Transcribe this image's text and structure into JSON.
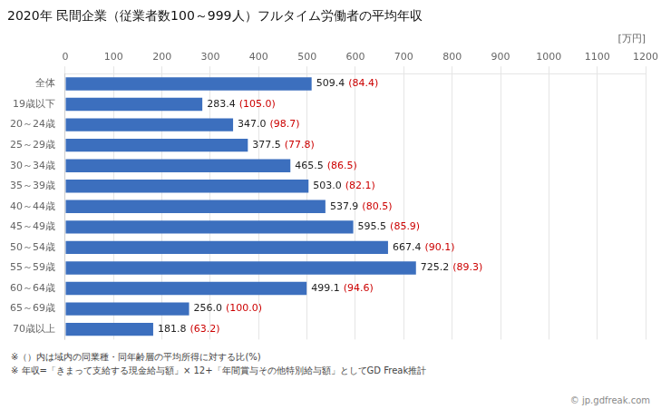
{
  "chart_data": {
    "type": "bar",
    "orientation": "horizontal",
    "title": "2020年 民間企業（従業者数100～999人）フルタイム労働者の平均年収",
    "xlabel": "[万円]",
    "categories": [
      "全体",
      "19歳以下",
      "20～24歳",
      "25～29歳",
      "30～34歳",
      "35～39歳",
      "40～44歳",
      "45～49歳",
      "50～54歳",
      "55～59歳",
      "60～64歳",
      "65～69歳",
      "70歳以上"
    ],
    "values": [
      509.4,
      283.4,
      347.0,
      377.5,
      465.5,
      503.0,
      537.9,
      595.5,
      667.4,
      725.2,
      499.1,
      256.0,
      181.8
    ],
    "value_labels": [
      "509.4",
      "283.4",
      "347.0",
      "377.5",
      "465.5",
      "503.0",
      "537.9",
      "595.5",
      "667.4",
      "725.2",
      "499.1",
      "256.0",
      "181.8"
    ],
    "data_labels": true,
    "ratios": [
      84.4,
      105.0,
      98.7,
      77.8,
      86.5,
      82.1,
      80.5,
      85.9,
      90.1,
      89.3,
      94.6,
      100.0,
      63.2
    ],
    "ratio_labels": [
      "(84.4)",
      "(105.0)",
      "(98.7)",
      "(77.8)",
      "(86.5)",
      "(82.1)",
      "(80.5)",
      "(85.9)",
      "(90.1)",
      "(89.3)",
      "(94.6)",
      "(100.0)",
      "(63.2)"
    ],
    "ratio_color": "#cc0000",
    "color": "#3c6fbe",
    "xlim": [
      0,
      1200
    ],
    "xticks": [
      0,
      100,
      200,
      300,
      400,
      500,
      600,
      700,
      800,
      900,
      1000,
      1100,
      1200
    ],
    "grid": true,
    "notes": [
      "※（）内は域内の同業種・同年齢層の平均所得に対する比(%)",
      "※ 年収=「きまって支給する現金給与額」× 12+「年間賞与その他特別給与額」としてGD Freak推計"
    ],
    "watermark": "© jp.gdfreak.com"
  }
}
